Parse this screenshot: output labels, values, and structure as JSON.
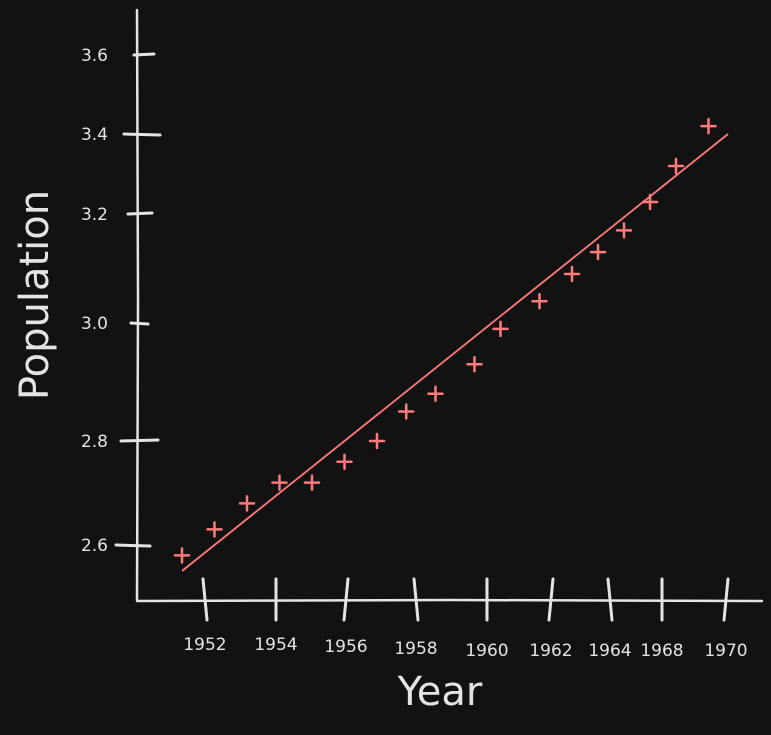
{
  "chart_data": {
    "type": "scatter",
    "title": "",
    "xlabel": "Year",
    "ylabel": "Population",
    "grid": false,
    "legend": "none",
    "x_tick_labels": [
      "1952",
      "1954",
      "1956",
      "1958",
      "1960",
      "1962",
      "1964",
      "1968",
      "1970"
    ],
    "y_tick_labels": [
      "2.6",
      "2.8",
      "3.0",
      "3.2",
      "3.4",
      "3.6"
    ],
    "points": [
      {
        "x": 1951.0,
        "y": 2.58
      },
      {
        "x": 1952.0,
        "y": 2.63
      },
      {
        "x": 1953.0,
        "y": 2.68
      },
      {
        "x": 1954.0,
        "y": 2.72
      },
      {
        "x": 1955.0,
        "y": 2.72
      },
      {
        "x": 1956.0,
        "y": 2.76
      },
      {
        "x": 1957.0,
        "y": 2.8
      },
      {
        "x": 1957.9,
        "y": 2.85
      },
      {
        "x": 1958.8,
        "y": 2.88
      },
      {
        "x": 1960.0,
        "y": 2.93
      },
      {
        "x": 1960.8,
        "y": 2.99
      },
      {
        "x": 1962.0,
        "y": 3.04
      },
      {
        "x": 1963.0,
        "y": 3.09
      },
      {
        "x": 1963.8,
        "y": 3.13
      },
      {
        "x": 1964.6,
        "y": 3.17
      },
      {
        "x": 1965.4,
        "y": 3.23
      },
      {
        "x": 1966.2,
        "y": 3.32
      },
      {
        "x": 1967.2,
        "y": 3.42
      }
    ],
    "trend_line": {
      "from": {
        "x": 1951.0,
        "y": 2.55
      },
      "to": {
        "x": 1967.8,
        "y": 3.4
      }
    },
    "colors": {
      "background": "#121212",
      "axis": "#e4e4e4",
      "series": "#ff7a7a"
    }
  }
}
